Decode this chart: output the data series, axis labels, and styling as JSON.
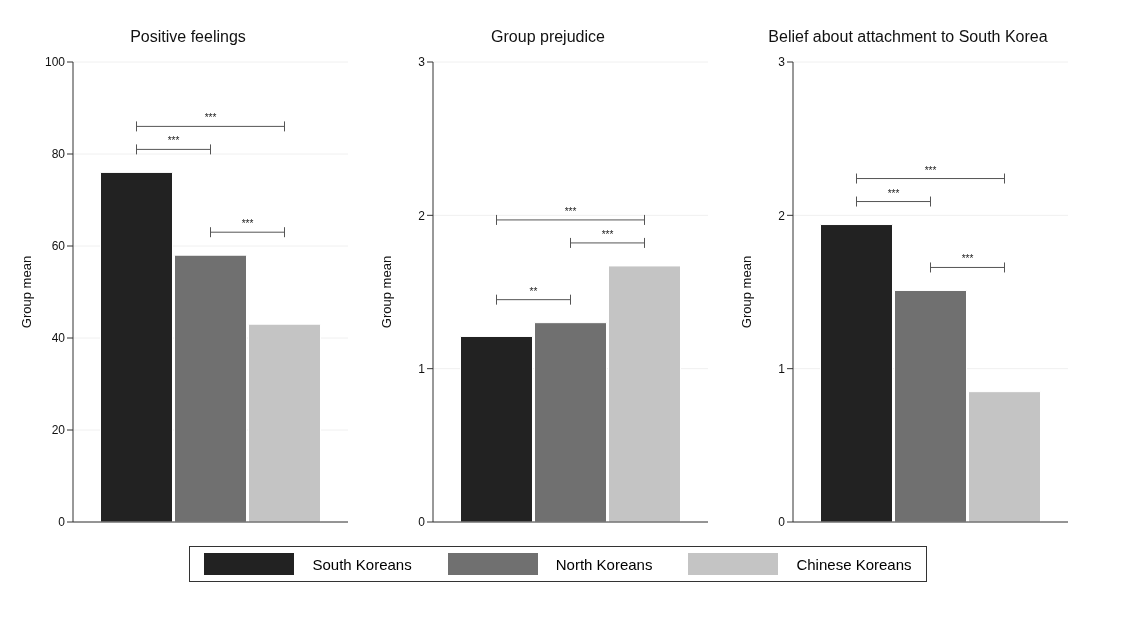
{
  "chart_data": [
    {
      "type": "bar",
      "title": "Positive feelings",
      "ylabel": "Group mean",
      "categories": [
        null
      ],
      "ylim": [
        0,
        100
      ],
      "yticks": [
        0,
        20,
        40,
        60,
        80,
        100
      ],
      "grid": "y",
      "legend": "bottom",
      "annotations": [
        "***",
        "***",
        "***"
      ],
      "series": [
        {
          "name": "South Koreans",
          "color": "#222222",
          "values": [
            76
          ]
        },
        {
          "name": "North Koreans",
          "color": "#707070",
          "values": [
            58
          ]
        },
        {
          "name": "Chinese Koreans",
          "color": "#c4c4c4",
          "values": [
            43
          ]
        }
      ]
    },
    {
      "type": "bar",
      "title": "Group prejudice",
      "ylabel": "Group mean",
      "categories": [
        null
      ],
      "ylim": [
        0,
        3
      ],
      "yticks": [
        0,
        1,
        2,
        3
      ],
      "grid": "y",
      "annotations": [
        "**",
        "***",
        "***"
      ],
      "series": [
        {
          "color": "#222222",
          "values": [
            1.21
          ]
        },
        {
          "color": "#707070",
          "values": [
            1.3
          ]
        },
        {
          "color": "#c4c4c4",
          "values": [
            1.67
          ]
        }
      ]
    },
    {
      "type": "bar",
      "title": "Belief about attachment to South Korea",
      "ylabel": "Group mean",
      "categories": [
        null
      ],
      "ylim": [
        0,
        3
      ],
      "yticks": [
        0,
        1,
        2,
        3
      ],
      "grid": "y",
      "annotations": [
        "***",
        "***",
        "***"
      ],
      "series": [
        {
          "color": "#222222",
          "values": [
            1.94
          ]
        },
        {
          "color": "#707070",
          "values": [
            1.51
          ]
        },
        {
          "color": "#c4c4c4",
          "values": [
            0.85
          ]
        }
      ]
    }
  ]
}
